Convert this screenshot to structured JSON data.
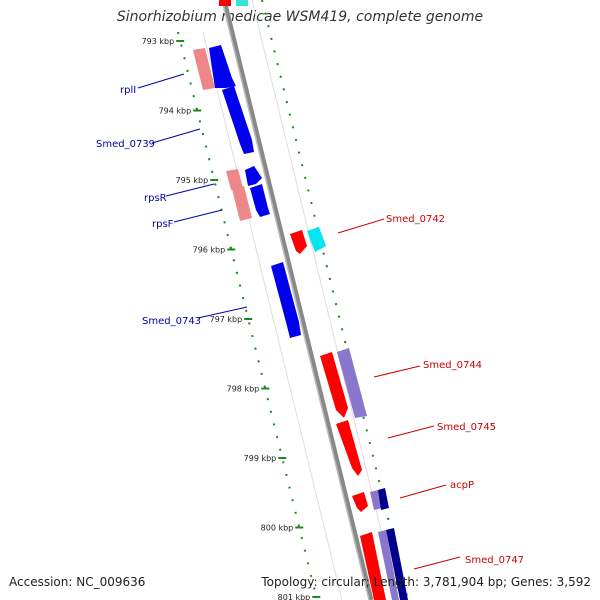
{
  "title": "Sinorhizobium medicae WSM419, complete genome",
  "footer": {
    "accession": "Accession: NC_009636",
    "summary": "Topology: circular; Length: 3,781,904 bp; Genes: 3,592"
  },
  "colors": {
    "backbone": "#808080",
    "tick": "#1a8a1a",
    "left_label": "#0000aa",
    "right_label": "#cc0000",
    "plus_strand_gene": "#ff0000",
    "plus_strand_cds": "#8877cc",
    "minus_strand_gene": "#0000ee",
    "minus_strand_cds": "#ee8888",
    "rna": "#00e5ee"
  },
  "axis": {
    "unit": "kbp",
    "ticks": [
      "793 kbp",
      "794 kbp",
      "795 kbp",
      "796 kbp",
      "797 kbp",
      "798 kbp",
      "799 kbp",
      "800 kbp",
      "801 kbp"
    ]
  },
  "genes_left": [
    {
      "name": "rplI"
    },
    {
      "name": "Smed_0739"
    },
    {
      "name": "rpsR"
    },
    {
      "name": "rpsF"
    },
    {
      "name": "Smed_0743"
    }
  ],
  "genes_right": [
    {
      "name": "Smed_0742"
    },
    {
      "name": "Smed_0744"
    },
    {
      "name": "Smed_0745"
    },
    {
      "name": "acpP"
    },
    {
      "name": "Smed_0747"
    }
  ]
}
